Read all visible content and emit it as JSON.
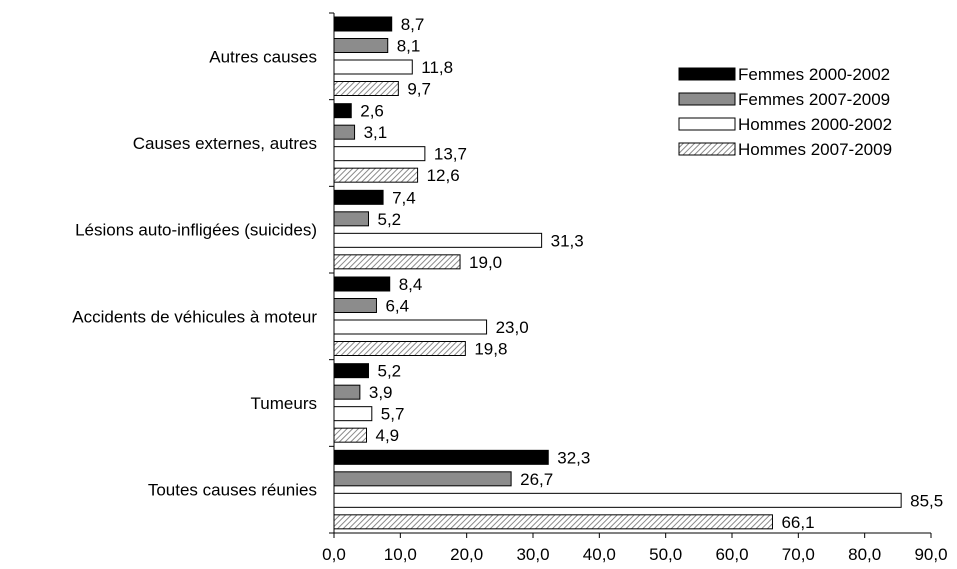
{
  "chart_data": {
    "type": "bar",
    "orientation": "horizontal",
    "categories": [
      "Toutes causes réunies",
      "Tumeurs",
      "Accidents de véhicules à moteur",
      "Lésions auto-infligées (suicides)",
      "Causes externes, autres",
      "Autres causes"
    ],
    "series": [
      {
        "name": "Femmes 2000-2002",
        "values": [
          32.3,
          5.2,
          8.4,
          7.4,
          2.6,
          8.7
        ],
        "labels": [
          "32,3",
          "5,2",
          "8,4",
          "7,4",
          "2,6",
          "8,7"
        ],
        "style": "solid-black"
      },
      {
        "name": "Femmes 2007-2009",
        "values": [
          26.7,
          3.9,
          6.4,
          5.2,
          3.1,
          8.1
        ],
        "labels": [
          "26,7",
          "3,9",
          "6,4",
          "5,2",
          "3,1",
          "8,1"
        ],
        "style": "solid-gray"
      },
      {
        "name": "Hommes 2000-2002",
        "values": [
          85.5,
          5.7,
          23.0,
          31.3,
          13.7,
          11.8
        ],
        "labels": [
          "85,5",
          "5,7",
          "23,0",
          "31,3",
          "13,7",
          "11,8"
        ],
        "style": "white"
      },
      {
        "name": "Hommes 2007-2009",
        "values": [
          66.1,
          4.9,
          19.8,
          19.0,
          12.6,
          9.7
        ],
        "labels": [
          "66,1",
          "4,9",
          "19,8",
          "19,0",
          "12,6",
          "9,7"
        ],
        "style": "hatched"
      }
    ],
    "xlim": [
      0,
      90
    ],
    "x_ticks": [
      0,
      10,
      20,
      30,
      40,
      50,
      60,
      70,
      80,
      90
    ],
    "x_tick_labels": [
      "0,0",
      "10,0",
      "20,0",
      "30,0",
      "40,0",
      "50,0",
      "60,0",
      "70,0",
      "80,0",
      "90,0"
    ],
    "title": "",
    "xlabel": "",
    "ylabel": "",
    "grid": false,
    "legend_position": "right",
    "colors": {
      "solid-black": "#000000",
      "solid-gray": "#8c8c8c",
      "white": "#ffffff",
      "hatch-line": "#8a8a8a",
      "stroke": "#000000"
    }
  }
}
